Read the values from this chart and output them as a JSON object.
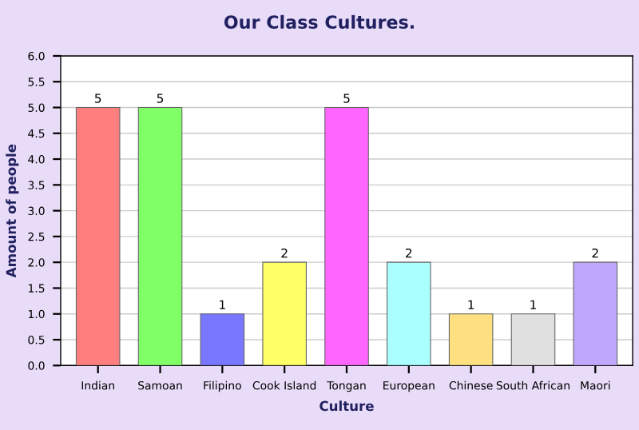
{
  "chart_data": {
    "type": "bar",
    "title": "Our Class Cultures.",
    "xlabel": "Culture",
    "ylabel": "Amount of people",
    "categories": [
      "Indian",
      "Samoan",
      "Filipino",
      "Cook Island",
      "Tongan",
      "European",
      "Chinese",
      "South African",
      "Maori"
    ],
    "values": [
      5,
      5,
      1,
      2,
      5,
      2,
      1,
      1,
      2
    ],
    "colors": [
      "#ff7f7f",
      "#80ff66",
      "#7777ff",
      "#ffff66",
      "#ff66ff",
      "#aaffff",
      "#ffe080",
      "#e0e0e0",
      "#c0a8ff"
    ],
    "ylim": [
      0,
      6
    ],
    "yticks": [
      {
        "value": 0,
        "label": "0.0"
      },
      0.5,
      {
        "value": 1,
        "label": "1.0"
      },
      1.5,
      {
        "value": 2,
        "label": "2.0"
      },
      2.5,
      {
        "value": 3,
        "label": "3.0"
      },
      3.5,
      {
        "value": 4,
        "label": "4.0"
      },
      4.5,
      {
        "value": 5,
        "label": "5.0"
      },
      5.5,
      {
        "value": 6,
        "label": "6.0"
      }
    ],
    "grid": "y",
    "data_labels": true
  }
}
